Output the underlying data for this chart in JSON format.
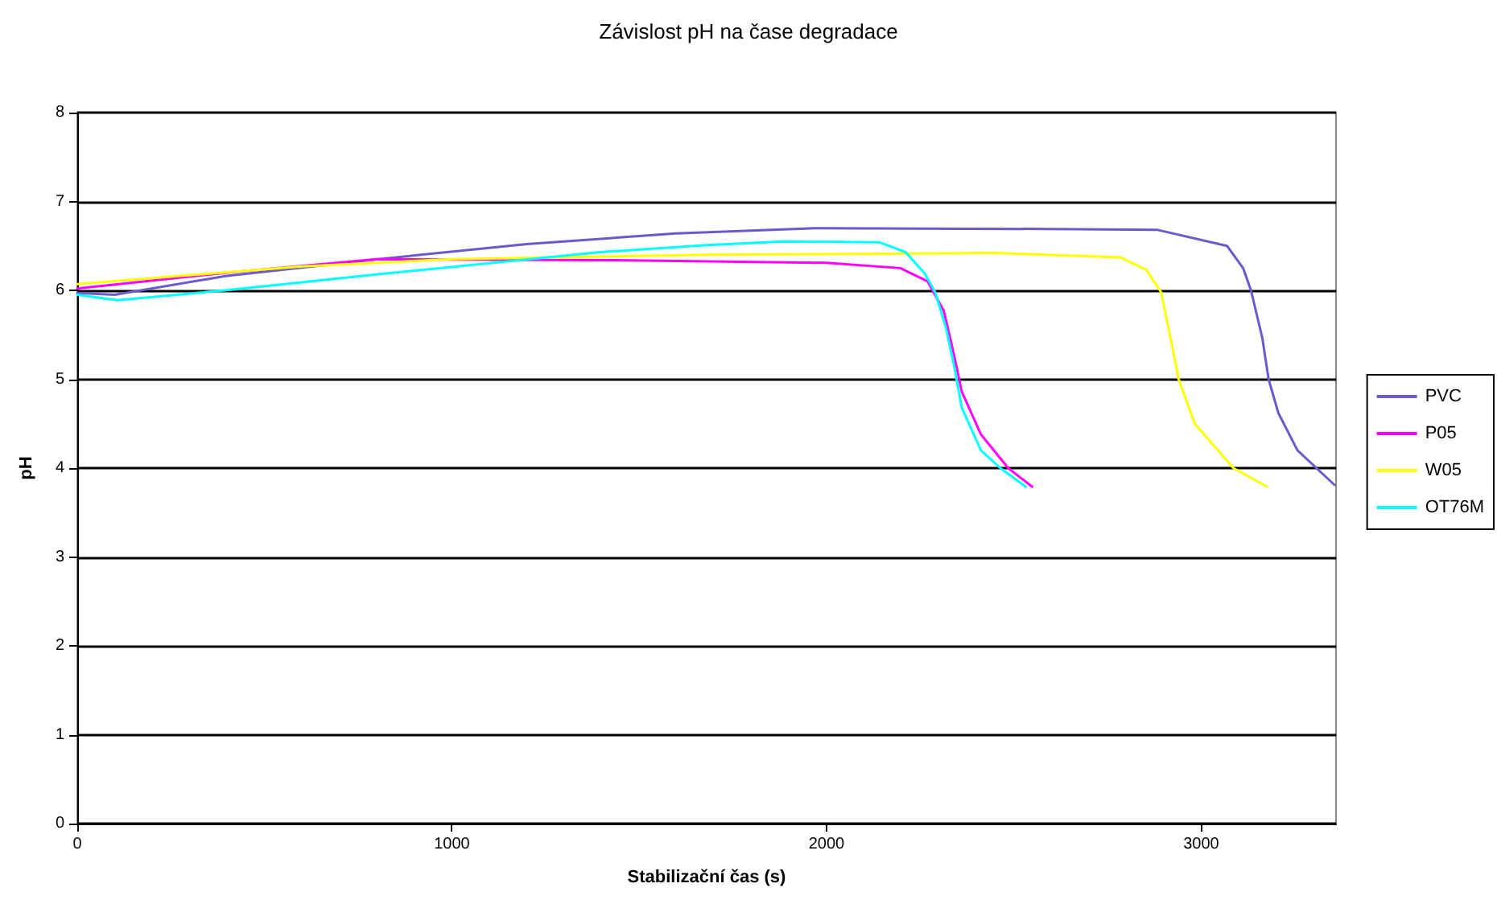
{
  "chart_data": {
    "type": "line",
    "title": "Závislost pH na čase degradace",
    "xlabel": "Stabilizační čas (s)",
    "ylabel": "pH",
    "xlim": [
      0,
      3360
    ],
    "xticks": [
      0,
      1000,
      2000,
      3000
    ],
    "ylim": [
      0,
      8
    ],
    "yticks": [
      0,
      1,
      2,
      3,
      4,
      5,
      6,
      7,
      8
    ],
    "grid": "y",
    "legend": "right",
    "marker": "none",
    "line_style": "solid",
    "series": [
      {
        "name": "PVC",
        "color": "#6a5acd",
        "x": [
          0,
          100,
          395,
          824,
          1200,
          1597,
          1970,
          2597,
          2884,
          3069,
          3112,
          3133,
          3163,
          3180,
          3206,
          3257,
          3356
        ],
        "values": [
          5.97,
          5.95,
          6.16,
          6.36,
          6.52,
          6.64,
          6.7,
          6.69,
          6.68,
          6.5,
          6.25,
          6.0,
          5.47,
          5.0,
          4.62,
          4.2,
          3.81
        ]
      },
      {
        "name": "P05",
        "color": "#ff00ff",
        "x": [
          0,
          400,
          800,
          1400,
          2000,
          2197,
          2270,
          2313,
          2340,
          2361,
          2412,
          2485,
          2549
        ],
        "values": [
          6.02,
          6.2,
          6.35,
          6.34,
          6.31,
          6.25,
          6.1,
          5.77,
          5.28,
          4.86,
          4.38,
          4.0,
          3.79
        ]
      },
      {
        "name": "W05",
        "color": "#ffff00",
        "x": [
          0,
          600,
          1000,
          1682,
          2455,
          2785,
          2854,
          2893,
          2918,
          2940,
          2983,
          3086,
          3176
        ],
        "values": [
          6.07,
          6.27,
          6.35,
          6.4,
          6.42,
          6.37,
          6.23,
          5.98,
          5.47,
          5.0,
          4.5,
          4.0,
          3.79
        ]
      },
      {
        "name": "OT76M",
        "color": "#00ffff",
        "x": [
          0,
          107,
          395,
          824,
          1395,
          1682,
          1884,
          2142,
          2211,
          2262,
          2290,
          2318,
          2340,
          2361,
          2412,
          2464,
          2532
        ],
        "values": [
          5.95,
          5.89,
          6.0,
          6.19,
          6.43,
          6.51,
          6.55,
          6.54,
          6.43,
          6.19,
          5.98,
          5.59,
          5.16,
          4.68,
          4.2,
          4.0,
          3.79
        ]
      }
    ]
  }
}
